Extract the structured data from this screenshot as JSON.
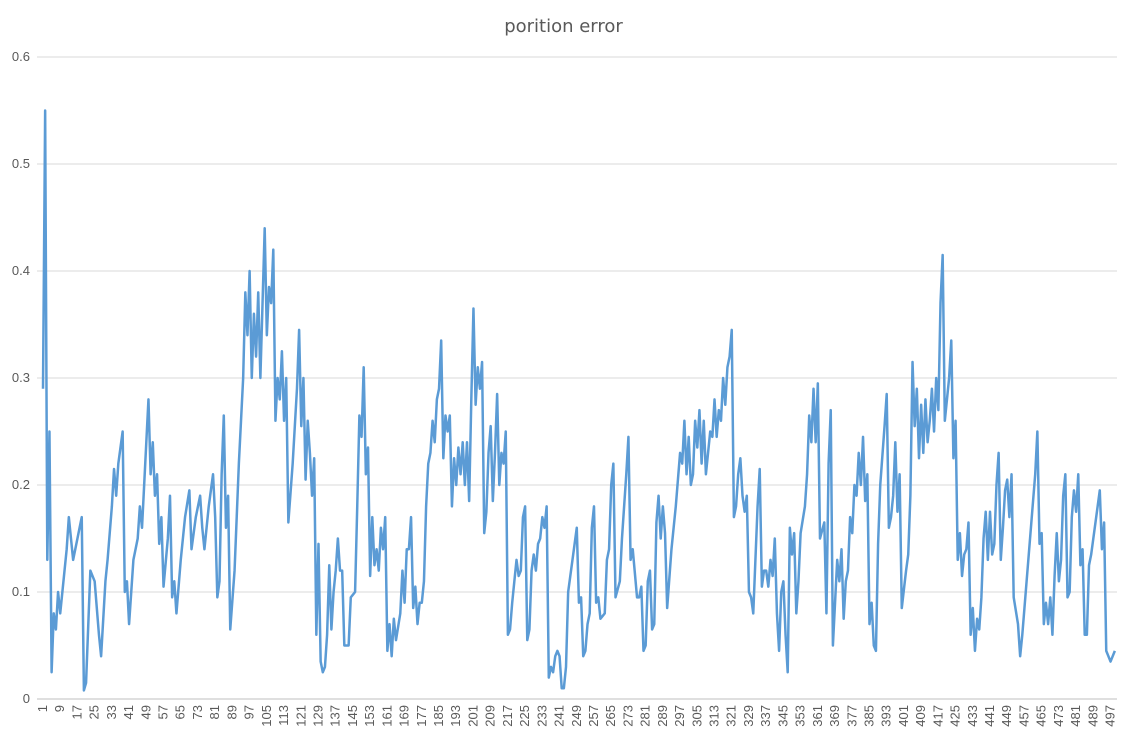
{
  "chart_data": {
    "type": "line",
    "title": "porition error",
    "xlabel": "",
    "ylabel": "",
    "ylim": [
      0,
      0.6
    ],
    "yticks": [
      0,
      0.1,
      0.2,
      0.3,
      0.4,
      0.5,
      0.6
    ],
    "xlim": [
      1,
      500
    ],
    "xtick_step": 4,
    "grid": "horizontal",
    "legend": "none",
    "line_color": "#5b9bd5",
    "anchors": [
      [
        1,
        0.29
      ],
      [
        2,
        0.55
      ],
      [
        3,
        0.13
      ],
      [
        4,
        0.25
      ],
      [
        5,
        0.025
      ],
      [
        6,
        0.08
      ],
      [
        7,
        0.065
      ],
      [
        8,
        0.1
      ],
      [
        9,
        0.08
      ],
      [
        12,
        0.14
      ],
      [
        13,
        0.17
      ],
      [
        15,
        0.13
      ],
      [
        17,
        0.15
      ],
      [
        19,
        0.17
      ],
      [
        20,
        0.008
      ],
      [
        21,
        0.015
      ],
      [
        23,
        0.12
      ],
      [
        25,
        0.11
      ],
      [
        27,
        0.06
      ],
      [
        28,
        0.04
      ],
      [
        30,
        0.11
      ],
      [
        31,
        0.13
      ],
      [
        33,
        0.18
      ],
      [
        34,
        0.215
      ],
      [
        35,
        0.19
      ],
      [
        36,
        0.22
      ],
      [
        38,
        0.25
      ],
      [
        39,
        0.1
      ],
      [
        40,
        0.11
      ],
      [
        41,
        0.07
      ],
      [
        43,
        0.13
      ],
      [
        45,
        0.15
      ],
      [
        46,
        0.18
      ],
      [
        47,
        0.16
      ],
      [
        49,
        0.24
      ],
      [
        50,
        0.28
      ],
      [
        51,
        0.21
      ],
      [
        52,
        0.24
      ],
      [
        53,
        0.19
      ],
      [
        54,
        0.21
      ],
      [
        55,
        0.145
      ],
      [
        56,
        0.17
      ],
      [
        57,
        0.105
      ],
      [
        59,
        0.15
      ],
      [
        60,
        0.19
      ],
      [
        61,
        0.095
      ],
      [
        62,
        0.11
      ],
      [
        63,
        0.08
      ],
      [
        65,
        0.13
      ],
      [
        67,
        0.17
      ],
      [
        69,
        0.195
      ],
      [
        70,
        0.14
      ],
      [
        72,
        0.17
      ],
      [
        74,
        0.19
      ],
      [
        75,
        0.16
      ],
      [
        76,
        0.14
      ],
      [
        78,
        0.18
      ],
      [
        80,
        0.21
      ],
      [
        81,
        0.17
      ],
      [
        82,
        0.095
      ],
      [
        83,
        0.11
      ],
      [
        84,
        0.21
      ],
      [
        85,
        0.265
      ],
      [
        86,
        0.16
      ],
      [
        87,
        0.19
      ],
      [
        88,
        0.065
      ],
      [
        90,
        0.12
      ],
      [
        92,
        0.22
      ],
      [
        94,
        0.3
      ],
      [
        95,
        0.38
      ],
      [
        96,
        0.34
      ],
      [
        97,
        0.4
      ],
      [
        98,
        0.3
      ],
      [
        99,
        0.36
      ],
      [
        100,
        0.32
      ],
      [
        101,
        0.38
      ],
      [
        102,
        0.3
      ],
      [
        104,
        0.44
      ],
      [
        105,
        0.34
      ],
      [
        106,
        0.385
      ],
      [
        107,
        0.37
      ],
      [
        108,
        0.42
      ],
      [
        109,
        0.26
      ],
      [
        110,
        0.3
      ],
      [
        111,
        0.28
      ],
      [
        112,
        0.325
      ],
      [
        113,
        0.26
      ],
      [
        114,
        0.3
      ],
      [
        115,
        0.165
      ],
      [
        117,
        0.22
      ],
      [
        119,
        0.29
      ],
      [
        120,
        0.345
      ],
      [
        121,
        0.255
      ],
      [
        122,
        0.3
      ],
      [
        123,
        0.205
      ],
      [
        124,
        0.26
      ],
      [
        125,
        0.23
      ],
      [
        126,
        0.19
      ],
      [
        127,
        0.225
      ],
      [
        128,
        0.06
      ],
      [
        129,
        0.145
      ],
      [
        130,
        0.035
      ],
      [
        131,
        0.025
      ],
      [
        132,
        0.03
      ],
      [
        133,
        0.06
      ],
      [
        134,
        0.125
      ],
      [
        135,
        0.065
      ],
      [
        136,
        0.1
      ],
      [
        137,
        0.12
      ],
      [
        138,
        0.15
      ],
      [
        139,
        0.12
      ],
      [
        140,
        0.12
      ],
      [
        141,
        0.05
      ],
      [
        143,
        0.05
      ],
      [
        144,
        0.095
      ],
      [
        146,
        0.1
      ],
      [
        147,
        0.18
      ],
      [
        148,
        0.265
      ],
      [
        149,
        0.245
      ],
      [
        150,
        0.31
      ],
      [
        151,
        0.21
      ],
      [
        152,
        0.235
      ],
      [
        153,
        0.115
      ],
      [
        154,
        0.17
      ],
      [
        155,
        0.125
      ],
      [
        156,
        0.14
      ],
      [
        157,
        0.12
      ],
      [
        158,
        0.16
      ],
      [
        159,
        0.14
      ],
      [
        160,
        0.17
      ],
      [
        161,
        0.045
      ],
      [
        162,
        0.07
      ],
      [
        163,
        0.04
      ],
      [
        164,
        0.075
      ],
      [
        165,
        0.055
      ],
      [
        167,
        0.08
      ],
      [
        168,
        0.12
      ],
      [
        169,
        0.09
      ],
      [
        170,
        0.14
      ],
      [
        171,
        0.14
      ],
      [
        172,
        0.17
      ],
      [
        173,
        0.085
      ],
      [
        174,
        0.105
      ],
      [
        175,
        0.07
      ],
      [
        176,
        0.09
      ],
      [
        177,
        0.09
      ],
      [
        178,
        0.11
      ],
      [
        179,
        0.18
      ],
      [
        180,
        0.22
      ],
      [
        181,
        0.23
      ],
      [
        182,
        0.26
      ],
      [
        183,
        0.24
      ],
      [
        184,
        0.28
      ],
      [
        185,
        0.29
      ],
      [
        186,
        0.335
      ],
      [
        187,
        0.225
      ],
      [
        188,
        0.265
      ],
      [
        189,
        0.25
      ],
      [
        190,
        0.265
      ],
      [
        191,
        0.18
      ],
      [
        192,
        0.225
      ],
      [
        193,
        0.2
      ],
      [
        194,
        0.235
      ],
      [
        195,
        0.21
      ],
      [
        196,
        0.24
      ],
      [
        197,
        0.2
      ],
      [
        198,
        0.24
      ],
      [
        199,
        0.185
      ],
      [
        200,
        0.28
      ],
      [
        201,
        0.365
      ],
      [
        202,
        0.275
      ],
      [
        203,
        0.31
      ],
      [
        204,
        0.29
      ],
      [
        205,
        0.315
      ],
      [
        206,
        0.155
      ],
      [
        207,
        0.175
      ],
      [
        208,
        0.23
      ],
      [
        209,
        0.255
      ],
      [
        210,
        0.185
      ],
      [
        211,
        0.23
      ],
      [
        212,
        0.285
      ],
      [
        213,
        0.2
      ],
      [
        214,
        0.23
      ],
      [
        215,
        0.22
      ],
      [
        216,
        0.25
      ],
      [
        217,
        0.06
      ],
      [
        218,
        0.065
      ],
      [
        219,
        0.09
      ],
      [
        220,
        0.11
      ],
      [
        221,
        0.13
      ],
      [
        222,
        0.115
      ],
      [
        223,
        0.12
      ],
      [
        224,
        0.17
      ],
      [
        225,
        0.18
      ],
      [
        226,
        0.055
      ],
      [
        227,
        0.065
      ],
      [
        228,
        0.12
      ],
      [
        229,
        0.135
      ],
      [
        230,
        0.12
      ],
      [
        231,
        0.145
      ],
      [
        232,
        0.15
      ],
      [
        233,
        0.17
      ],
      [
        234,
        0.16
      ],
      [
        235,
        0.18
      ],
      [
        236,
        0.02
      ],
      [
        237,
        0.03
      ],
      [
        238,
        0.025
      ],
      [
        239,
        0.04
      ],
      [
        240,
        0.045
      ],
      [
        241,
        0.04
      ],
      [
        242,
        0.01
      ],
      [
        243,
        0.01
      ],
      [
        244,
        0.03
      ],
      [
        245,
        0.1
      ],
      [
        247,
        0.13
      ],
      [
        249,
        0.16
      ],
      [
        250,
        0.09
      ],
      [
        251,
        0.095
      ],
      [
        252,
        0.04
      ],
      [
        253,
        0.045
      ],
      [
        254,
        0.07
      ],
      [
        255,
        0.08
      ],
      [
        256,
        0.16
      ],
      [
        257,
        0.18
      ],
      [
        258,
        0.09
      ],
      [
        259,
        0.095
      ],
      [
        260,
        0.075
      ],
      [
        262,
        0.08
      ],
      [
        263,
        0.13
      ],
      [
        264,
        0.14
      ],
      [
        265,
        0.2
      ],
      [
        266,
        0.22
      ],
      [
        267,
        0.095
      ],
      [
        269,
        0.11
      ],
      [
        270,
        0.15
      ],
      [
        271,
        0.18
      ],
      [
        272,
        0.21
      ],
      [
        273,
        0.245
      ],
      [
        274,
        0.13
      ],
      [
        275,
        0.14
      ],
      [
        277,
        0.095
      ],
      [
        278,
        0.095
      ],
      [
        279,
        0.105
      ],
      [
        280,
        0.045
      ],
      [
        281,
        0.05
      ],
      [
        282,
        0.11
      ],
      [
        283,
        0.12
      ],
      [
        284,
        0.065
      ],
      [
        285,
        0.07
      ],
      [
        286,
        0.165
      ],
      [
        287,
        0.19
      ],
      [
        288,
        0.15
      ],
      [
        289,
        0.18
      ],
      [
        290,
        0.155
      ],
      [
        291,
        0.085
      ],
      [
        293,
        0.14
      ],
      [
        295,
        0.18
      ],
      [
        297,
        0.23
      ],
      [
        298,
        0.22
      ],
      [
        299,
        0.26
      ],
      [
        300,
        0.21
      ],
      [
        301,
        0.245
      ],
      [
        302,
        0.2
      ],
      [
        303,
        0.21
      ],
      [
        304,
        0.26
      ],
      [
        305,
        0.235
      ],
      [
        306,
        0.27
      ],
      [
        307,
        0.22
      ],
      [
        308,
        0.26
      ],
      [
        309,
        0.21
      ],
      [
        311,
        0.25
      ],
      [
        312,
        0.245
      ],
      [
        313,
        0.28
      ],
      [
        314,
        0.245
      ],
      [
        315,
        0.27
      ],
      [
        316,
        0.26
      ],
      [
        317,
        0.3
      ],
      [
        318,
        0.275
      ],
      [
        319,
        0.31
      ],
      [
        320,
        0.32
      ],
      [
        321,
        0.345
      ],
      [
        322,
        0.17
      ],
      [
        323,
        0.18
      ],
      [
        324,
        0.21
      ],
      [
        325,
        0.225
      ],
      [
        326,
        0.19
      ],
      [
        327,
        0.175
      ],
      [
        328,
        0.19
      ],
      [
        329,
        0.1
      ],
      [
        330,
        0.095
      ],
      [
        331,
        0.08
      ],
      [
        332,
        0.13
      ],
      [
        333,
        0.18
      ],
      [
        334,
        0.215
      ],
      [
        335,
        0.105
      ],
      [
        336,
        0.12
      ],
      [
        337,
        0.12
      ],
      [
        338,
        0.105
      ],
      [
        339,
        0.13
      ],
      [
        340,
        0.115
      ],
      [
        341,
        0.15
      ],
      [
        342,
        0.08
      ],
      [
        343,
        0.045
      ],
      [
        344,
        0.1
      ],
      [
        345,
        0.11
      ],
      [
        346,
        0.06
      ],
      [
        347,
        0.025
      ],
      [
        348,
        0.16
      ],
      [
        349,
        0.135
      ],
      [
        350,
        0.155
      ],
      [
        351,
        0.08
      ],
      [
        352,
        0.11
      ],
      [
        353,
        0.155
      ],
      [
        355,
        0.18
      ],
      [
        356,
        0.21
      ],
      [
        357,
        0.265
      ],
      [
        358,
        0.24
      ],
      [
        359,
        0.29
      ],
      [
        360,
        0.24
      ],
      [
        361,
        0.295
      ],
      [
        362,
        0.15
      ],
      [
        364,
        0.165
      ],
      [
        365,
        0.08
      ],
      [
        366,
        0.22
      ],
      [
        367,
        0.27
      ],
      [
        368,
        0.05
      ],
      [
        370,
        0.13
      ],
      [
        371,
        0.11
      ],
      [
        372,
        0.14
      ],
      [
        373,
        0.075
      ],
      [
        374,
        0.11
      ],
      [
        375,
        0.12
      ],
      [
        376,
        0.17
      ],
      [
        377,
        0.155
      ],
      [
        378,
        0.2
      ],
      [
        379,
        0.19
      ],
      [
        380,
        0.23
      ],
      [
        381,
        0.2
      ],
      [
        382,
        0.245
      ],
      [
        383,
        0.185
      ],
      [
        384,
        0.21
      ],
      [
        385,
        0.07
      ],
      [
        386,
        0.09
      ],
      [
        387,
        0.05
      ],
      [
        388,
        0.045
      ],
      [
        389,
        0.145
      ],
      [
        390,
        0.2
      ],
      [
        392,
        0.255
      ],
      [
        393,
        0.285
      ],
      [
        394,
        0.16
      ],
      [
        395,
        0.17
      ],
      [
        396,
        0.19
      ],
      [
        397,
        0.24
      ],
      [
        398,
        0.175
      ],
      [
        399,
        0.21
      ],
      [
        400,
        0.085
      ],
      [
        402,
        0.12
      ],
      [
        403,
        0.135
      ],
      [
        404,
        0.19
      ],
      [
        405,
        0.315
      ],
      [
        406,
        0.255
      ],
      [
        407,
        0.29
      ],
      [
        408,
        0.225
      ],
      [
        409,
        0.275
      ],
      [
        410,
        0.23
      ],
      [
        411,
        0.28
      ],
      [
        412,
        0.24
      ],
      [
        413,
        0.26
      ],
      [
        414,
        0.29
      ],
      [
        415,
        0.25
      ],
      [
        416,
        0.3
      ],
      [
        417,
        0.27
      ],
      [
        418,
        0.37
      ],
      [
        419,
        0.415
      ],
      [
        420,
        0.26
      ],
      [
        421,
        0.28
      ],
      [
        422,
        0.3
      ],
      [
        423,
        0.335
      ],
      [
        424,
        0.225
      ],
      [
        425,
        0.26
      ],
      [
        426,
        0.13
      ],
      [
        427,
        0.155
      ],
      [
        428,
        0.115
      ],
      [
        429,
        0.135
      ],
      [
        430,
        0.14
      ],
      [
        431,
        0.165
      ],
      [
        432,
        0.06
      ],
      [
        433,
        0.085
      ],
      [
        434,
        0.045
      ],
      [
        435,
        0.075
      ],
      [
        436,
        0.065
      ],
      [
        437,
        0.095
      ],
      [
        438,
        0.15
      ],
      [
        439,
        0.175
      ],
      [
        440,
        0.13
      ],
      [
        441,
        0.175
      ],
      [
        442,
        0.135
      ],
      [
        443,
        0.145
      ],
      [
        444,
        0.2
      ],
      [
        445,
        0.23
      ],
      [
        446,
        0.13
      ],
      [
        447,
        0.16
      ],
      [
        448,
        0.195
      ],
      [
        449,
        0.205
      ],
      [
        450,
        0.17
      ],
      [
        451,
        0.21
      ],
      [
        452,
        0.095
      ],
      [
        454,
        0.07
      ],
      [
        455,
        0.04
      ],
      [
        456,
        0.06
      ],
      [
        458,
        0.11
      ],
      [
        460,
        0.16
      ],
      [
        462,
        0.21
      ],
      [
        463,
        0.25
      ],
      [
        464,
        0.145
      ],
      [
        465,
        0.155
      ],
      [
        466,
        0.07
      ],
      [
        467,
        0.09
      ],
      [
        468,
        0.07
      ],
      [
        469,
        0.095
      ],
      [
        470,
        0.06
      ],
      [
        471,
        0.115
      ],
      [
        472,
        0.155
      ],
      [
        473,
        0.11
      ],
      [
        474,
        0.13
      ],
      [
        475,
        0.19
      ],
      [
        476,
        0.21
      ],
      [
        477,
        0.095
      ],
      [
        478,
        0.1
      ],
      [
        479,
        0.17
      ],
      [
        480,
        0.195
      ],
      [
        481,
        0.175
      ],
      [
        482,
        0.21
      ],
      [
        483,
        0.125
      ],
      [
        484,
        0.14
      ],
      [
        485,
        0.06
      ],
      [
        486,
        0.06
      ],
      [
        487,
        0.125
      ],
      [
        488,
        0.135
      ],
      [
        490,
        0.165
      ],
      [
        492,
        0.195
      ],
      [
        493,
        0.14
      ],
      [
        494,
        0.165
      ],
      [
        495,
        0.045
      ],
      [
        496,
        0.04
      ],
      [
        497,
        0.035
      ],
      [
        498,
        0.04
      ],
      [
        499,
        0.045
      ]
    ]
  }
}
